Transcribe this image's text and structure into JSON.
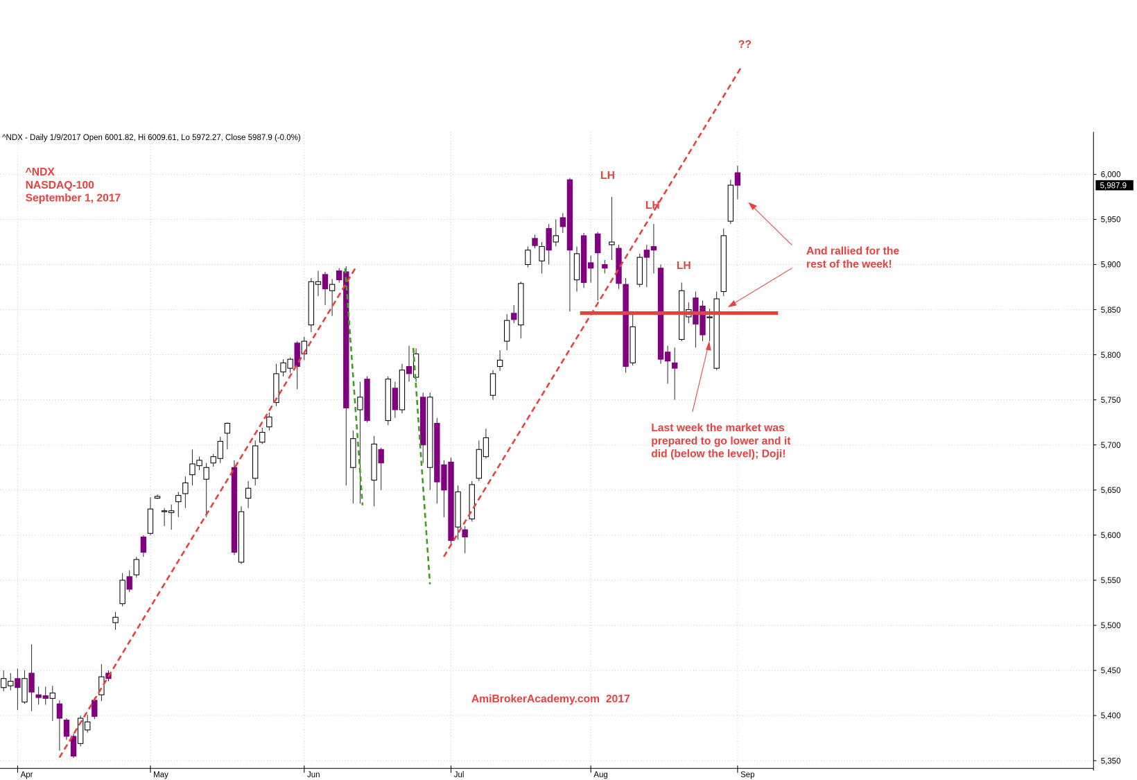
{
  "chart_data": {
    "type": "candlestick",
    "title": "^NDX - Daily 1/9/2017 Open 6001.82, Hi 6009.61, Lo 5972.27, Close 5987.9 (-0.0%)",
    "categories": [
      null,
      null,
      "Apr",
      null,
      null,
      null,
      null,
      null,
      null,
      null,
      null,
      null,
      null,
      null,
      null,
      null,
      null,
      null,
      null,
      null,
      null,
      "May",
      null,
      null,
      null,
      null,
      null,
      null,
      null,
      null,
      null,
      null,
      null,
      null,
      null,
      null,
      null,
      null,
      null,
      null,
      null,
      null,
      null,
      "Jun",
      null,
      null,
      null,
      null,
      null,
      null,
      null,
      null,
      null,
      null,
      null,
      null,
      null,
      null,
      null,
      null,
      null,
      null,
      null,
      null,
      "Jul",
      null,
      null,
      null,
      null,
      null,
      null,
      null,
      null,
      null,
      null,
      null,
      null,
      null,
      null,
      null,
      null,
      null,
      null,
      null,
      "Aug",
      null,
      null,
      null,
      null,
      null,
      null,
      null,
      null,
      null,
      null,
      null,
      null,
      null,
      null,
      null,
      null,
      null,
      null,
      null,
      null,
      "Sep"
    ],
    "open": [
      5431,
      5433,
      5441,
      5415,
      5447,
      5423,
      5422,
      5419,
      5413,
      5395,
      5377,
      5369,
      5384,
      5417,
      5423,
      5447,
      5503,
      5524,
      5554,
      5556,
      5598,
      5602,
      5641,
      5626,
      5625,
      5637,
      5646,
      5667,
      5677,
      5662,
      5680,
      5685,
      5713,
      5675,
      5570,
      5641,
      5663,
      5703,
      5720,
      5747,
      5781,
      5785,
      5813,
      5801,
      5833,
      5878,
      5889,
      5871,
      5893,
      5892,
      5675,
      5739,
      5773,
      5661,
      5695,
      5727,
      5763,
      5739,
      5787,
      5775,
      5753,
      5675,
      5724,
      5678,
      5681,
      5609,
      5606,
      5618,
      5663,
      5687,
      5755,
      5787,
      5815,
      5846,
      5833,
      5900,
      5929,
      5904,
      5940,
      5925,
      5952,
      5994,
      5883,
      5932,
      5902,
      5934,
      5900,
      5922,
      5918,
      5878,
      5791,
      5878,
      5916,
      5920,
      5896,
      5803,
      5791,
      5817,
      5842,
      5863,
      5854,
      5841,
      5785,
      5870,
      5948,
      6001.82
    ],
    "high": [
      5450,
      5447,
      5452,
      5450,
      5479,
      5432,
      5432,
      5433,
      5417,
      5397,
      5380,
      5400,
      5401,
      5420,
      5457,
      5450,
      5515,
      5558,
      5561,
      5576,
      5600,
      5642,
      5645,
      5630,
      5634,
      5648,
      5665,
      5695,
      5687,
      5680,
      5690,
      5709,
      5725,
      5683,
      5632,
      5660,
      5705,
      5719,
      5736,
      5790,
      5795,
      5797,
      5815,
      5820,
      5885,
      5893,
      5892,
      5884,
      5896,
      5898,
      5716,
      5770,
      5776,
      5710,
      5697,
      5776,
      5770,
      5790,
      5810,
      5807,
      5758,
      5758,
      5730,
      5683,
      5686,
      5655,
      5610,
      5660,
      5705,
      5718,
      5783,
      5805,
      5845,
      5855,
      5881,
      5920,
      5933,
      5925,
      5945,
      5950,
      5957,
      5996,
      5920,
      5935,
      5910,
      5936,
      5905,
      5975,
      5922,
      5885,
      5845,
      5912,
      5922,
      5945,
      5900,
      5810,
      5808,
      5880,
      5858,
      5870,
      5860,
      5851,
      5870,
      5940,
      5994,
      6009.61
    ],
    "low": [
      5427,
      5428,
      5406,
      5413,
      5405,
      5412,
      5412,
      5394,
      5361,
      5373,
      5353,
      5366,
      5381,
      5396,
      5416,
      5438,
      5495,
      5521,
      5537,
      5553,
      5576,
      5600,
      5640,
      5610,
      5606,
      5620,
      5630,
      5655,
      5672,
      5620,
      5676,
      5680,
      5695,
      5578,
      5568,
      5630,
      5655,
      5701,
      5716,
      5743,
      5776,
      5780,
      5762,
      5794,
      5825,
      5865,
      5855,
      5843,
      5880,
      5655,
      5635,
      5635,
      5725,
      5632,
      5650,
      5722,
      5730,
      5735,
      5770,
      5770,
      5680,
      5650,
      5635,
      5620,
      5590,
      5595,
      5580,
      5615,
      5660,
      5685,
      5750,
      5782,
      5805,
      5835,
      5818,
      5897,
      5918,
      5890,
      5900,
      5920,
      5935,
      5848,
      5870,
      5874,
      5880,
      5860,
      5890,
      5905,
      5873,
      5780,
      5788,
      5875,
      5875,
      5890,
      5790,
      5768,
      5750,
      5815,
      5835,
      5808,
      5815,
      5815,
      5783,
      5865,
      5945,
      5972.27
    ],
    "close": [
      5441,
      5438,
      5431,
      5441,
      5426,
      5420,
      5419,
      5425,
      5397,
      5377,
      5355,
      5397,
      5393,
      5399,
      5443,
      5441,
      5509,
      5550,
      5540,
      5573,
      5581,
      5629,
      5643,
      5627,
      5627,
      5644,
      5658,
      5679,
      5683,
      5675,
      5687,
      5704,
      5724,
      5581,
      5626,
      5652,
      5699,
      5714,
      5731,
      5779,
      5791,
      5795,
      5787,
      5815,
      5881,
      5881,
      5873,
      5878,
      5883,
      5741,
      5707,
      5753,
      5727,
      5701,
      5680,
      5773,
      5739,
      5783,
      5779,
      5801,
      5700,
      5753,
      5659,
      5650,
      5594,
      5648,
      5598,
      5656,
      5695,
      5708,
      5779,
      5794,
      5838,
      5839,
      5879,
      5916,
      5921,
      5920,
      5916,
      5932,
      5942,
      5916,
      5912,
      5880,
      5896,
      5913,
      5896,
      5925,
      5879,
      5787,
      5831,
      5908,
      5908,
      5916,
      5795,
      5793,
      5785,
      5871,
      5850,
      5834,
      5822,
      5842,
      5862,
      5932,
      5988,
      5987.9
    ],
    "up_color": "#ffffff",
    "down_color": "#800080",
    "ylim": [
      5339,
      6047
    ],
    "yticks": [
      {
        "value": 5350,
        "label": "5,350"
      },
      {
        "value": 5400,
        "label": "5,400"
      },
      {
        "value": 5450,
        "label": "5,450"
      },
      {
        "value": 5500,
        "label": "5,500"
      },
      {
        "value": 5550,
        "label": "5,550"
      },
      {
        "value": 5600,
        "label": "5,600"
      },
      {
        "value": 5650,
        "label": "5,650"
      },
      {
        "value": 5700,
        "label": "5,700"
      },
      {
        "value": 5750,
        "label": "5,750"
      },
      {
        "value": 5800,
        "label": "5,800"
      },
      {
        "value": 5850,
        "label": "5,850"
      },
      {
        "value": 5900,
        "label": "5,900"
      },
      {
        "value": 5950,
        "label": "5,950"
      },
      {
        "value": 6000,
        "label": "6,000"
      }
    ],
    "grid": true,
    "last_price": {
      "value": 5987.9,
      "label": "5,987.9"
    },
    "annotations": {
      "symbol": "^NDX",
      "index_name": "NASDAQ-100",
      "date": "September 1, 2017",
      "lh_labels": [
        "LH",
        "LH",
        "LH"
      ],
      "question": "??",
      "rally_note": [
        "And rallied for the",
        "rest of the week!"
      ],
      "doji_note": [
        "Last week the market was",
        "prepared to go lower and it",
        "did (below the level); Doji!"
      ],
      "watermark": "AmiBrokerAcademy.com  2017"
    }
  }
}
